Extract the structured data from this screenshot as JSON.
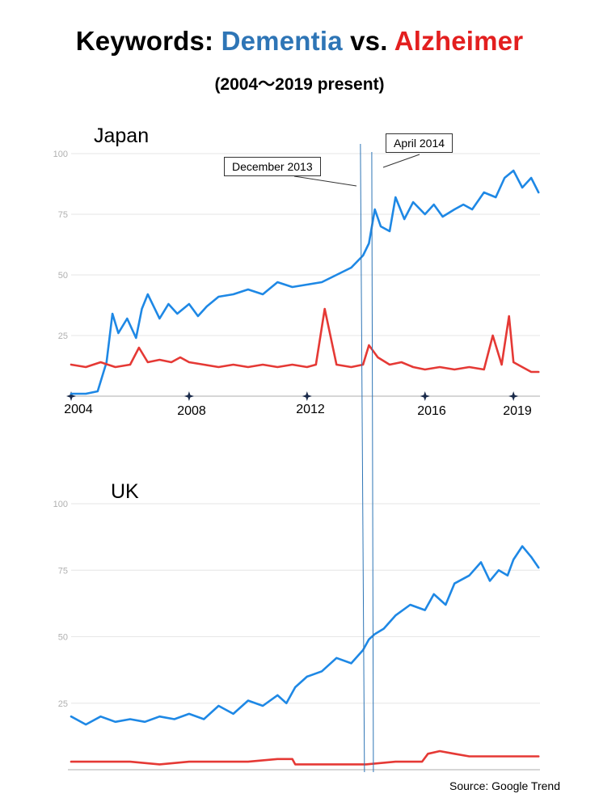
{
  "title": {
    "prefix": "Keywords:",
    "keyword1": "Dementia",
    "vs": "vs.",
    "keyword2": "Alzheimer"
  },
  "subtitle": "(2004～2019 present)",
  "source": "Source: Google Trend",
  "annotations": {
    "dec2013": "December 2013",
    "apr2014": "April 2014"
  },
  "colors": {
    "dementia": "#1e88e5",
    "alzheimer": "#e53935",
    "keyword_dementia": "#2e75b6",
    "keyword_alzheimer": "#e31f1f",
    "grid": "#e6e6e6",
    "axis": "#c8c8c8"
  },
  "chart_data": [
    {
      "type": "line",
      "region": "Japan",
      "title": "Japan",
      "x_range": [
        2004.0,
        2019.9
      ],
      "ylim": [
        0,
        100
      ],
      "yticks": [
        "100",
        "75",
        "50",
        "25"
      ],
      "xticks": [
        2004,
        2008,
        2012,
        2016,
        2019
      ],
      "xtick_labels": [
        "2004",
        "2008",
        "2012",
        "2016",
        "2019"
      ],
      "markers": [
        2013.92,
        2014.25
      ],
      "series": [
        {
          "name": "Dementia",
          "x": [
            2004.0,
            2004.5,
            2004.9,
            2005.2,
            2005.4,
            2005.6,
            2005.9,
            2006.2,
            2006.4,
            2006.6,
            2007.0,
            2007.3,
            2007.6,
            2008.0,
            2008.3,
            2008.6,
            2009.0,
            2009.5,
            2010.0,
            2010.5,
            2011.0,
            2011.5,
            2012.0,
            2012.5,
            2013.0,
            2013.5,
            2013.9,
            2014.1,
            2014.3,
            2014.5,
            2014.8,
            2015.0,
            2015.3,
            2015.6,
            2016.0,
            2016.3,
            2016.6,
            2017.0,
            2017.3,
            2017.6,
            2018.0,
            2018.4,
            2018.7,
            2019.0,
            2019.3,
            2019.6,
            2019.85
          ],
          "values": [
            1,
            1,
            2,
            14,
            34,
            26,
            32,
            24,
            36,
            42,
            32,
            38,
            34,
            38,
            33,
            37,
            41,
            42,
            44,
            42,
            47,
            45,
            46,
            47,
            50,
            53,
            58,
            63,
            77,
            70,
            68,
            82,
            73,
            80,
            75,
            79,
            74,
            77,
            79,
            77,
            84,
            82,
            90,
            93,
            86,
            90,
            84
          ]
        },
        {
          "name": "Alzheimer",
          "x": [
            2004.0,
            2004.5,
            2005.0,
            2005.5,
            2006.0,
            2006.3,
            2006.6,
            2007.0,
            2007.4,
            2007.7,
            2008.0,
            2008.5,
            2009.0,
            2009.5,
            2010.0,
            2010.5,
            2011.0,
            2011.5,
            2012.0,
            2012.3,
            2012.6,
            2013.0,
            2013.5,
            2013.9,
            2014.1,
            2014.4,
            2014.8,
            2015.2,
            2015.6,
            2016.0,
            2016.5,
            2017.0,
            2017.5,
            2018.0,
            2018.3,
            2018.6,
            2018.85,
            2019.0,
            2019.3,
            2019.6,
            2019.85
          ],
          "values": [
            13,
            12,
            14,
            12,
            13,
            20,
            14,
            15,
            14,
            16,
            14,
            13,
            12,
            13,
            12,
            13,
            12,
            13,
            12,
            13,
            36,
            13,
            12,
            13,
            21,
            16,
            13,
            14,
            12,
            11,
            12,
            11,
            12,
            11,
            25,
            13,
            33,
            14,
            12,
            10,
            10
          ]
        }
      ]
    },
    {
      "type": "line",
      "region": "UK",
      "title": "UK",
      "x_range": [
        2004.0,
        2019.9
      ],
      "ylim": [
        0,
        100
      ],
      "yticks": [
        "100",
        "75",
        "50",
        "25"
      ],
      "markers": [
        2013.92,
        2014.25
      ],
      "series": [
        {
          "name": "Dementia",
          "x": [
            2004.0,
            2004.5,
            2005.0,
            2005.5,
            2006.0,
            2006.5,
            2007.0,
            2007.5,
            2008.0,
            2008.5,
            2009.0,
            2009.5,
            2010.0,
            2010.5,
            2011.0,
            2011.3,
            2011.6,
            2012.0,
            2012.5,
            2013.0,
            2013.5,
            2013.9,
            2014.1,
            2014.3,
            2014.6,
            2015.0,
            2015.5,
            2016.0,
            2016.3,
            2016.7,
            2017.0,
            2017.5,
            2017.9,
            2018.2,
            2018.5,
            2018.8,
            2019.0,
            2019.3,
            2019.6,
            2019.85
          ],
          "values": [
            20,
            17,
            20,
            18,
            19,
            18,
            20,
            19,
            21,
            19,
            24,
            21,
            26,
            24,
            28,
            25,
            31,
            35,
            37,
            42,
            40,
            45,
            49,
            51,
            53,
            58,
            62,
            60,
            66,
            62,
            70,
            73,
            78,
            71,
            75,
            73,
            79,
            84,
            80,
            76
          ]
        },
        {
          "name": "Alzheimer",
          "x": [
            2004.0,
            2005.0,
            2006.0,
            2007.0,
            2008.0,
            2009.0,
            2010.0,
            2011.0,
            2011.5,
            2011.6,
            2012.0,
            2013.0,
            2014.0,
            2015.0,
            2015.9,
            2016.1,
            2016.5,
            2017.0,
            2017.5,
            2018.0,
            2018.5,
            2019.0,
            2019.5,
            2019.85
          ],
          "values": [
            3,
            3,
            3,
            2,
            3,
            3,
            3,
            4,
            4,
            2,
            2,
            2,
            2,
            3,
            3,
            6,
            7,
            6,
            5,
            5,
            5,
            5,
            5,
            5
          ]
        }
      ]
    }
  ]
}
